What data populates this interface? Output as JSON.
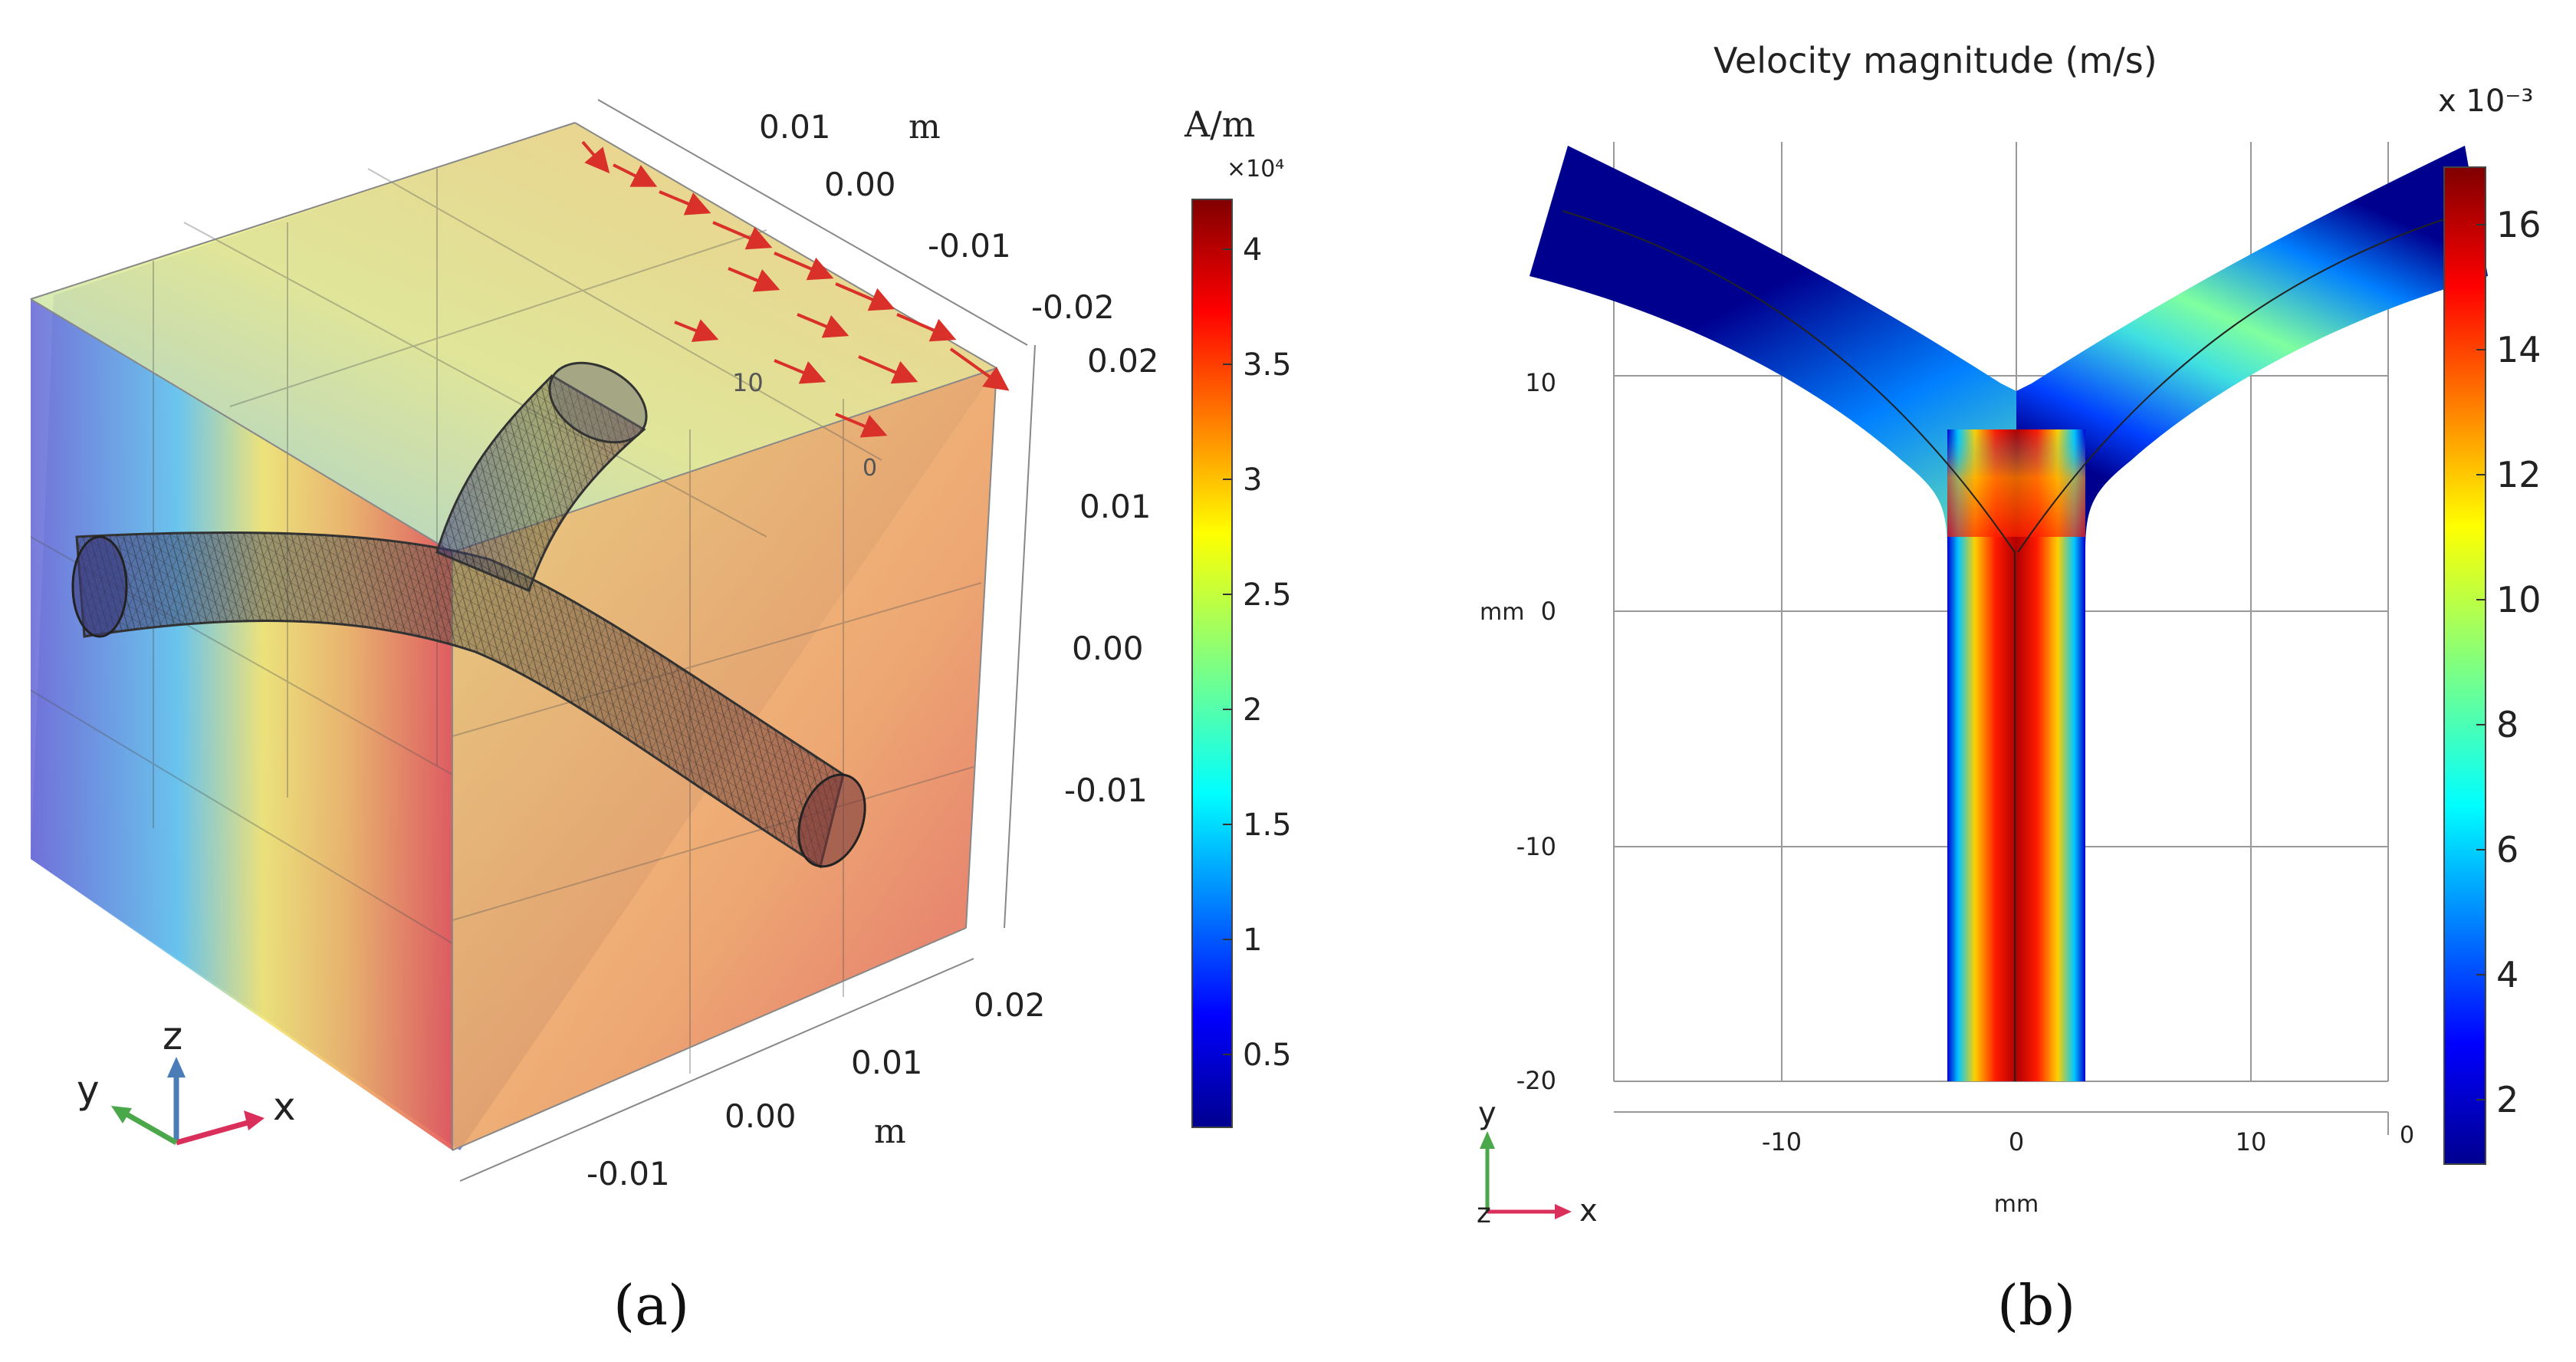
{
  "panel_a": {
    "colorbar": {
      "unit": "A/m",
      "multiplier": "×10⁴",
      "ticks": [
        "4",
        "3.5",
        "3",
        "2.5",
        "2",
        "1.5",
        "1",
        "0.5"
      ]
    },
    "axis_unit_top": "m",
    "axis_unit_bottom": "m",
    "top_axis_ticks": [
      "0.01",
      "0.00",
      "-0.01",
      "-0.02"
    ],
    "right_axis_ticks": [
      "0.02",
      "0.01",
      "0.00",
      "-0.01"
    ],
    "bottom_axis_ticks": [
      "0.02",
      "0.01",
      "0.00",
      "-0.01"
    ],
    "inner_labels": [
      "10",
      "0"
    ],
    "triad": {
      "x": "x",
      "y": "y",
      "z": "z"
    },
    "caption": "(a)"
  },
  "panel_b": {
    "title": "Velocity magnitude (m/s)",
    "colorbar": {
      "multiplier": "x 10⁻³",
      "ticks": [
        "16",
        "14",
        "12",
        "10",
        "8",
        "6",
        "4",
        "2"
      ]
    },
    "y_axis_unit": "mm",
    "x_axis_unit": "mm",
    "y_ticks": [
      "10",
      "0",
      "-10",
      "-20"
    ],
    "x_ticks": [
      "-10",
      "0",
      "10"
    ],
    "corner_label": "0",
    "triad": {
      "x": "x",
      "y": "y",
      "z": "z"
    },
    "caption": "(b)"
  },
  "colors": {
    "jet_dark_blue": "#00008f",
    "jet_red": "#cc0000",
    "arrow_red": "#d9302a"
  }
}
